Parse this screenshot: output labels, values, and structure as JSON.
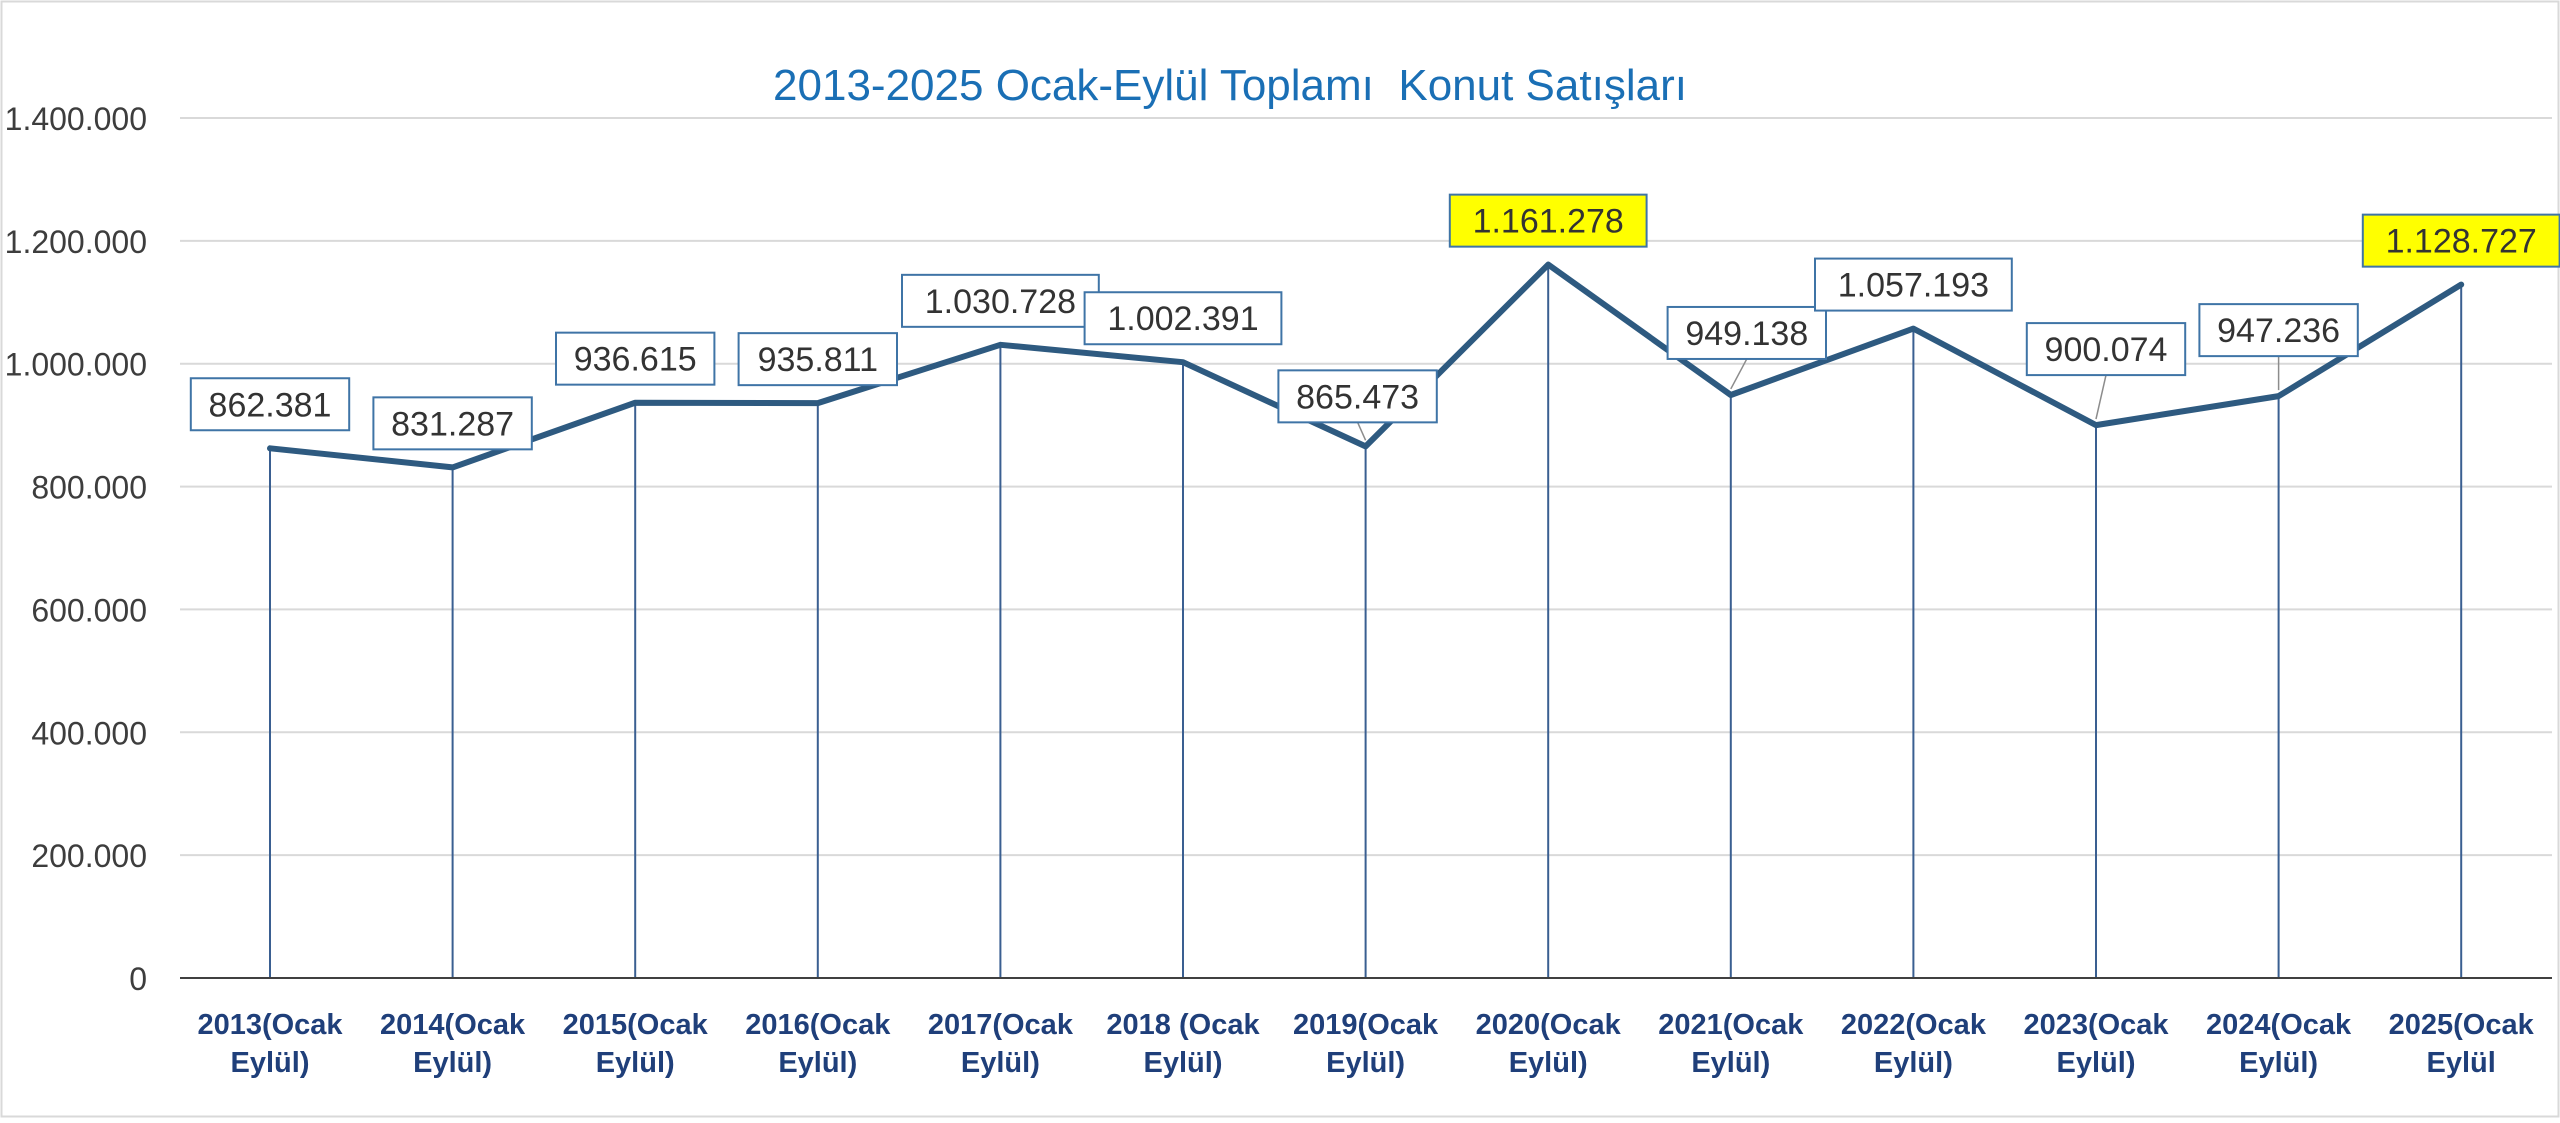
{
  "chart_data": {
    "type": "line",
    "title": "2013-2025 Ocak-Eylül Toplamı  Konut Satışları",
    "xlabel": "",
    "ylabel": "",
    "ylim": [
      0,
      1400000
    ],
    "yticks": [
      0,
      200000,
      400000,
      600000,
      800000,
      1000000,
      1200000,
      1400000
    ],
    "ytick_labels": [
      "0",
      "200.000",
      "400.000",
      "600.000",
      "800.000",
      "1.000.000",
      "1.200.000",
      "1.400.000"
    ],
    "grid": true,
    "drop_lines": true,
    "legend": "none",
    "categories": [
      [
        "2013(Ocak",
        "Eylül)"
      ],
      [
        "2014(Ocak",
        "Eylül)"
      ],
      [
        "2015(Ocak",
        "Eylül)"
      ],
      [
        "2016(Ocak",
        "Eylül)"
      ],
      [
        "2017(Ocak",
        "Eylül)"
      ],
      [
        "2018 (Ocak",
        "Eylül)"
      ],
      [
        "2019(Ocak",
        "Eylül)"
      ],
      [
        "2020(Ocak",
        "Eylül)"
      ],
      [
        "2021(Ocak",
        "Eylül)"
      ],
      [
        "2022(Ocak",
        "Eylül)"
      ],
      [
        "2023(Ocak",
        "Eylül)"
      ],
      [
        "2024(Ocak",
        "Eylül)"
      ],
      [
        "2025(Ocak",
        "Eylül"
      ]
    ],
    "values": [
      862381,
      831287,
      936615,
      935811,
      1030728,
      1002391,
      865473,
      1161278,
      949138,
      1057193,
      900074,
      947236,
      1128727
    ],
    "data_labels": [
      "862.381",
      "831.287",
      "936.615",
      "935.811",
      "1.030.728",
      "1.002.391",
      "865.473",
      "1.161.278",
      "949.138",
      "1.057.193",
      "900.074",
      "947.236",
      "1.128.727"
    ],
    "highlighted_indices": [
      7,
      12
    ],
    "colors": {
      "title": "#1a6fb5",
      "line": "#2e5a80",
      "drop_line": "#3a5f91",
      "axis_text": "#3d3d3d",
      "category_text": "#1f3f7a",
      "label_border": "#3f74a6",
      "label_text": "#333333",
      "highlight_fill": "#ffff00",
      "grid": "#d9d9d9",
      "axis": "#404040"
    }
  }
}
